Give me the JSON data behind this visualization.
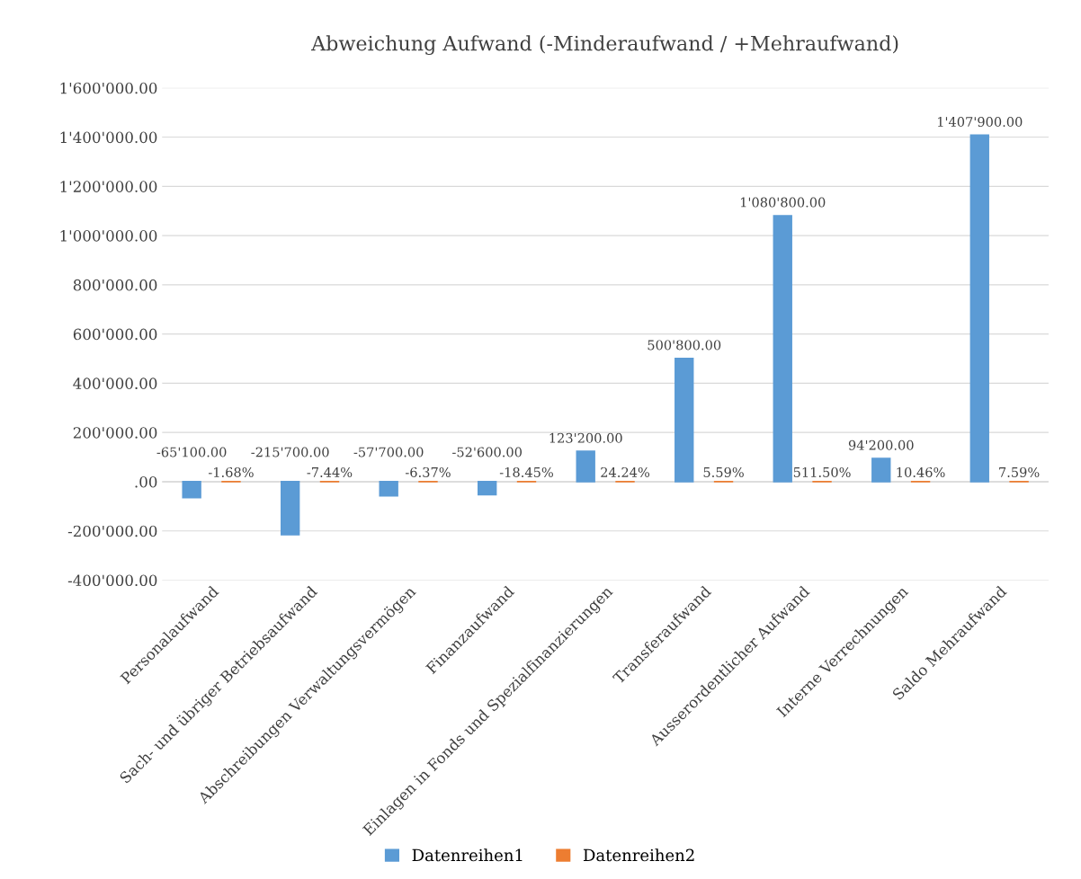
{
  "chart_data": {
    "type": "bar",
    "title": "Abweichung Aufwand (-Minderaufwand / +Mehraufwand)",
    "categories": [
      "Personalaufwand",
      "Sach- und übriger Betriebsaufwand",
      "Abschreibungen Verwaltungsvermögen",
      "Finanzaufwand",
      "Einlagen in Fonds und Spezialfinanzierungen",
      "Transferaufwand",
      "Ausserordentlicher Aufwand",
      "Interne Verrechnungen",
      "Saldo Mehraufwand"
    ],
    "series": [
      {
        "name": "Datenreihen1",
        "color": "#5b9bd5",
        "values": [
          -65100,
          -215700,
          -57700,
          -52600,
          123200,
          500800,
          1080800,
          94200,
          1407900
        ],
        "value_labels": [
          "-65'100.00",
          "-215'700.00",
          "-57'700.00",
          "-52'600.00",
          "123'200.00",
          "500'800.00",
          "1'080'800.00",
          "94'200.00",
          "1'407'900.00"
        ]
      },
      {
        "name": "Datenreihen2",
        "color": "#ed7d31",
        "values": [
          -1.68,
          -7.44,
          -6.37,
          -18.45,
          24.24,
          5.59,
          511.5,
          10.46,
          7.59
        ],
        "value_labels": [
          "-1.68%",
          "-7.44%",
          "-6.37%",
          "-18.45%",
          "24.24%",
          "5.59%",
          "511.50%",
          "10.46%",
          "7.59%"
        ]
      }
    ],
    "ylim": [
      -400000,
      1600000
    ],
    "yticks": [
      {
        "value": -400000,
        "label": "-400'000.00"
      },
      {
        "value": -200000,
        "label": "-200'000.00"
      },
      {
        "value": 0,
        "label": ".00"
      },
      {
        "value": 200000,
        "label": "200'000.00"
      },
      {
        "value": 400000,
        "label": "400'000.00"
      },
      {
        "value": 600000,
        "label": "600'000.00"
      },
      {
        "value": 800000,
        "label": "800'000.00"
      },
      {
        "value": 1000000,
        "label": "1'000'000.00"
      },
      {
        "value": 1200000,
        "label": "1'200'000.00"
      },
      {
        "value": 1400000,
        "label": "1'400'000.00"
      },
      {
        "value": 1600000,
        "label": "1'600'000.00"
      }
    ],
    "grid": "y",
    "legend": "bottom"
  }
}
